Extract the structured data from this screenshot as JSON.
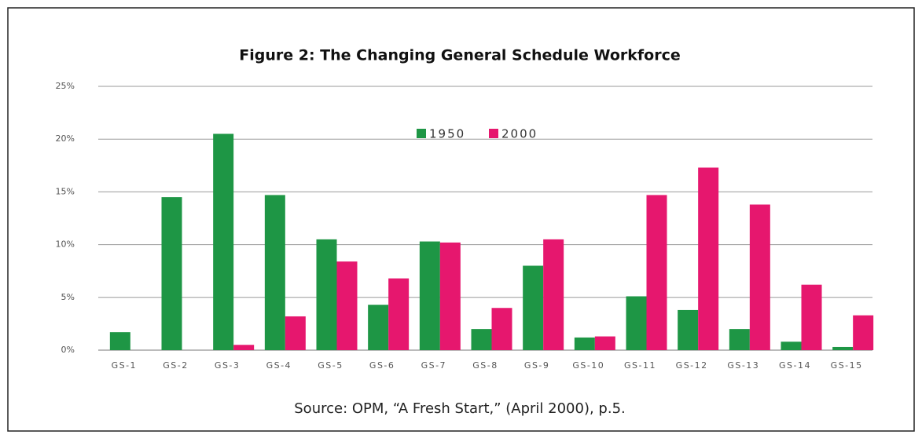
{
  "chart_data": {
    "type": "bar",
    "title": "Figure 2: The Changing General Schedule Workforce",
    "source": "Source: OPM, “A Fresh Start,” (April 2000), p.5.",
    "categories": [
      "GS-1",
      "GS-2",
      "GS-3",
      "GS-4",
      "GS-5",
      "GS-6",
      "GS-7",
      "GS-8",
      "GS-9",
      "GS-10",
      "GS-11",
      "GS-12",
      "GS-13",
      "GS-14",
      "GS-15"
    ],
    "series": [
      {
        "name": "1950",
        "color": "#1e9645",
        "values": [
          1.7,
          14.5,
          20.5,
          14.7,
          10.5,
          4.3,
          10.3,
          2.0,
          8.0,
          1.2,
          5.1,
          3.8,
          2.0,
          0.8,
          0.3
        ]
      },
      {
        "name": "2000",
        "color": "#e6176e",
        "values": [
          0,
          0,
          0.5,
          3.2,
          8.4,
          6.8,
          10.2,
          4.0,
          10.5,
          1.3,
          14.7,
          17.3,
          13.8,
          6.2,
          3.3
        ]
      }
    ],
    "ylim": [
      0,
      25
    ],
    "yticks": [
      {
        "value": 0,
        "label": "0%"
      },
      {
        "value": 5,
        "label": "5%"
      },
      {
        "value": 10,
        "label": "10%"
      },
      {
        "value": 15,
        "label": "15%"
      },
      {
        "value": 20,
        "label": "20%"
      },
      {
        "value": 25,
        "label": "25%"
      }
    ],
    "grid": true,
    "legend": "top"
  }
}
